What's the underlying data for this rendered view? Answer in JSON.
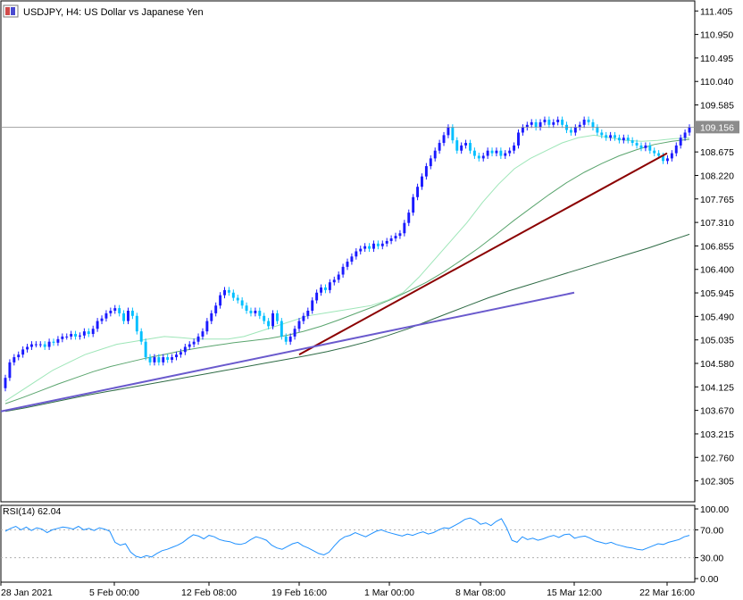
{
  "header": {
    "title": "USDJPY, H4:  US Dollar vs Japanese Yen"
  },
  "rsi": {
    "label": "RSI(14) 62.04",
    "levels": [
      "100.00",
      "70.00",
      "30.00",
      "0.00"
    ]
  },
  "colors": {
    "bull_candle": "#1a1aff",
    "bear_candle": "#00bfff",
    "ma_fast": "#9ee6b8",
    "ma_mid": "#5aa56e",
    "ma_slow": "#2e6b45",
    "trendline_red": "#8b0000",
    "trendline_purple": "#6a5acd",
    "rsi_line": "#1e90ff"
  },
  "chart_data": {
    "type": "candlestick",
    "symbol": "USDJPY",
    "timeframe": "H4",
    "current_price": "109.156",
    "price_ticks": [
      "111.405",
      "110.950",
      "110.495",
      "110.040",
      "109.585",
      "108.675",
      "108.220",
      "107.765",
      "107.310",
      "106.855",
      "106.400",
      "105.945",
      "105.490",
      "105.035",
      "104.580",
      "104.125",
      "103.670",
      "103.215",
      "102.760",
      "102.305"
    ],
    "price_range": [
      101.9,
      111.6
    ],
    "time_ticks": [
      "28 Jan 2021",
      "5 Feb 00:00",
      "12 Feb 08:00",
      "19 Feb 16:00",
      "1 Mar 00:00",
      "8 Mar 08:00",
      "15 Mar 12:00",
      "22 Mar 16:00"
    ],
    "closes": [
      104.3,
      104.6,
      104.7,
      104.75,
      104.85,
      104.9,
      104.95,
      104.95,
      104.95,
      104.9,
      105.0,
      104.98,
      105.05,
      105.1,
      105.1,
      105.15,
      105.1,
      105.12,
      105.2,
      105.15,
      105.25,
      105.4,
      105.45,
      105.55,
      105.6,
      105.65,
      105.55,
      105.4,
      105.6,
      105.5,
      105.2,
      105.0,
      104.7,
      104.6,
      104.7,
      104.6,
      104.7,
      104.65,
      104.7,
      104.75,
      104.8,
      104.9,
      104.95,
      105.0,
      105.1,
      105.2,
      105.4,
      105.55,
      105.7,
      105.9,
      106.0,
      105.95,
      105.85,
      105.8,
      105.7,
      105.6,
      105.55,
      105.6,
      105.5,
      105.4,
      105.3,
      105.55,
      105.4,
      105.1,
      105.0,
      105.1,
      105.25,
      105.4,
      105.5,
      105.6,
      105.8,
      105.95,
      106.05,
      106.0,
      106.15,
      106.2,
      106.3,
      106.45,
      106.55,
      106.65,
      106.75,
      106.8,
      106.85,
      106.8,
      106.9,
      106.85,
      106.9,
      106.95,
      107.0,
      107.05,
      107.1,
      107.3,
      107.5,
      107.8,
      108.0,
      108.2,
      108.4,
      108.55,
      108.7,
      108.85,
      109.0,
      109.15,
      108.9,
      108.7,
      108.8,
      108.85,
      108.7,
      108.6,
      108.55,
      108.6,
      108.7,
      108.65,
      108.7,
      108.6,
      108.65,
      108.7,
      108.8,
      109.05,
      109.15,
      109.2,
      109.25,
      109.15,
      109.25,
      109.3,
      109.2,
      109.25,
      109.3,
      109.2,
      109.1,
      109.05,
      109.15,
      109.2,
      109.3,
      109.25,
      109.15,
      109.05,
      109.0,
      108.95,
      109.0,
      108.95,
      108.9,
      108.95,
      108.9,
      108.85,
      108.8,
      108.75,
      108.8,
      108.7,
      108.65,
      108.6,
      108.5,
      108.55,
      108.65,
      108.8,
      108.95,
      109.05,
      109.15
    ],
    "ma_fast": [
      103.85,
      104.05,
      104.25,
      104.45,
      104.6,
      104.75,
      104.85,
      104.95,
      105.0,
      105.05,
      105.1,
      105.08,
      105.05,
      105.05,
      105.05,
      105.1,
      105.2,
      105.3,
      105.4,
      105.5,
      105.55,
      105.6,
      105.65,
      105.7,
      105.8,
      105.95,
      106.25,
      106.6,
      106.95,
      107.3,
      107.7,
      108.05,
      108.35,
      108.55,
      108.7,
      108.85,
      108.95,
      109.0,
      108.95,
      108.9,
      108.88,
      108.9,
      108.93,
      108.95
    ],
    "ma_mid": [
      103.8,
      103.92,
      104.05,
      104.18,
      104.3,
      104.42,
      104.52,
      104.6,
      104.68,
      104.75,
      104.82,
      104.88,
      104.93,
      104.98,
      105.02,
      105.06,
      105.12,
      105.2,
      105.3,
      105.42,
      105.55,
      105.68,
      105.82,
      105.98,
      106.15,
      106.35,
      106.58,
      106.82,
      107.08,
      107.35,
      107.6,
      107.85,
      108.08,
      108.28,
      108.45,
      108.6,
      108.72,
      108.82,
      108.88,
      108.92
    ],
    "ma_slow": [
      103.65,
      103.72,
      103.8,
      103.88,
      103.96,
      104.03,
      104.1,
      104.17,
      104.24,
      104.31,
      104.38,
      104.45,
      104.52,
      104.59,
      104.66,
      104.73,
      104.81,
      104.9,
      105.0,
      105.12,
      105.25,
      105.4,
      105.55,
      105.7,
      105.85,
      105.98,
      106.1,
      106.22,
      106.34,
      106.46,
      106.58,
      106.7,
      106.82,
      106.95,
      107.08
    ],
    "trendlines": [
      {
        "color_key": "trendline_red",
        "points": [
          [
            "19 Feb 16:00",
            104.75
          ],
          [
            "22 Mar 16:00",
            108.65
          ]
        ]
      },
      {
        "color_key": "trendline_purple",
        "points": [
          [
            "28 Jan 2021",
            103.65
          ],
          [
            "15 Mar 12:00",
            105.95
          ]
        ]
      }
    ],
    "rsi_values": [
      68,
      72,
      75,
      70,
      74,
      69,
      73,
      71,
      66,
      70,
      72,
      74,
      73,
      71,
      75,
      70,
      72,
      69,
      73,
      71,
      68,
      52,
      48,
      50,
      38,
      32,
      30,
      33,
      31,
      36,
      40,
      42,
      45,
      48,
      52,
      58,
      63,
      61,
      57,
      62,
      60,
      56,
      54,
      53,
      50,
      49,
      51,
      56,
      60,
      58,
      55,
      48,
      44,
      42,
      46,
      50,
      52,
      47,
      44,
      40,
      36,
      34,
      38,
      47,
      55,
      60,
      62,
      66,
      63,
      60,
      64,
      68,
      70,
      67,
      65,
      63,
      61,
      64,
      62,
      65,
      67,
      64,
      66,
      70,
      73,
      72,
      76,
      80,
      85,
      87,
      84,
      78,
      80,
      76,
      82,
      86,
      73,
      55,
      52,
      60,
      56,
      58,
      55,
      57,
      60,
      62,
      59,
      63,
      64,
      58,
      60,
      61,
      58,
      54,
      52,
      50,
      52,
      49,
      47,
      45,
      44,
      42,
      41,
      44,
      47,
      50,
      49,
      52,
      54,
      56,
      60,
      62
    ],
    "rsi_levels": [
      30,
      70
    ]
  }
}
